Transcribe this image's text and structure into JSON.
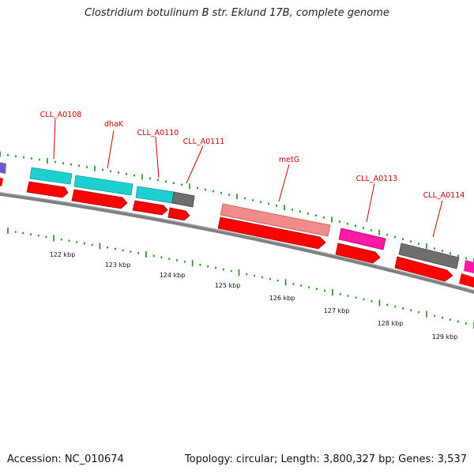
{
  "title": "Clostridium botulinum B str. Eklund 17B, complete genome",
  "footer": {
    "accession": "Accession: NC_010674",
    "summary": "Topology: circular; Length: 3,800,327 bp; Genes: 3,537"
  },
  "colors": {
    "backbone": "#808080",
    "cds": "#ff0000",
    "gene_cyan": "#1ecfcf",
    "gene_gray": "#6e6e6e",
    "gene_pink": "#f28b8b",
    "gene_magenta": "#ff1aa3",
    "gene_blue": "#6a5acd",
    "tick": "#1a8a1a",
    "label": "#cc0000"
  },
  "gene_labels": [
    {
      "name": "CLL_A0108"
    },
    {
      "name": "dhaK"
    },
    {
      "name": "CLL_A0110"
    },
    {
      "name": "CLL_A0111"
    },
    {
      "name": "metG"
    },
    {
      "name": "CLL_A0113"
    },
    {
      "name": "CLL_A0114"
    }
  ],
  "scale_labels": [
    "122 kbp",
    "123 kbp",
    "124 kbp",
    "125 kbp",
    "126 kbp",
    "127 kbp",
    "128 kbp",
    "129 kbp"
  ]
}
